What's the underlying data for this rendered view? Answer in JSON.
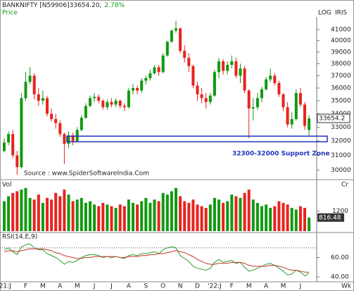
{
  "chart_data": {
    "type": "candlestick",
    "title": "BANKNIFTY [N59906]33654.20,",
    "change": "2.78%",
    "price_label": "Price",
    "scale_label": "LOG",
    "tool_label": "IRIS",
    "source": "Source : www.SpiderSoftwareIndia.Com",
    "support_zone": {
      "label": "32300-32000 Support Zone",
      "low": 32000,
      "high": 32300
    },
    "log_scale": true,
    "up_color": "#109a10",
    "down_color": "#e8231e",
    "categories": [
      "'21:J",
      null,
      null,
      null,
      null,
      "F",
      null,
      null,
      null,
      "M",
      null,
      null,
      null,
      "A",
      null,
      null,
      null,
      "M",
      null,
      null,
      null,
      "J",
      null,
      null,
      null,
      "J",
      null,
      null,
      null,
      "A",
      null,
      null,
      null,
      "S",
      null,
      null,
      null,
      "O",
      null,
      null,
      null,
      "N",
      null,
      null,
      null,
      "D",
      null,
      null,
      null,
      "'22:J",
      null,
      null,
      null,
      "F",
      null,
      null,
      null,
      "M",
      null,
      null,
      null,
      "A",
      null,
      null,
      null,
      "M",
      null,
      null,
      null,
      "J",
      null,
      null
    ],
    "x_unit": "Wk",
    "open": [
      31300,
      31900,
      32500,
      31000,
      30200,
      35200,
      36500,
      37000,
      35500,
      35000,
      35200,
      34000,
      33600,
      33300,
      32500,
      31800,
      32400,
      32000,
      32800,
      33700,
      34600,
      35200,
      35300,
      35000,
      34500,
      34900,
      34700,
      35000,
      34600,
      34500,
      35800,
      36000,
      35800,
      36600,
      36800,
      37200,
      37700,
      37300,
      38700,
      39900,
      40900,
      41100,
      39100,
      38500,
      37800,
      36200,
      35500,
      35200,
      34900,
      35400,
      37300,
      38200,
      37400,
      37900,
      38200,
      37000,
      37600,
      35800,
      34400,
      34500,
      35200,
      35900,
      36700,
      37000,
      36400,
      35500,
      34500,
      33200,
      33600,
      35600,
      34700,
      32800
    ],
    "high": [
      32200,
      32700,
      32800,
      31300,
      35600,
      37300,
      37700,
      37200,
      36000,
      35800,
      35400,
      34400,
      34000,
      33500,
      32600,
      32700,
      32600,
      33000,
      33900,
      34800,
      35400,
      35600,
      35500,
      35100,
      35100,
      35200,
      35200,
      35100,
      34800,
      36000,
      36300,
      36200,
      36800,
      37000,
      37500,
      37900,
      37900,
      38900,
      40000,
      41000,
      41800,
      41200,
      39600,
      38900,
      37900,
      36500,
      36000,
      35600,
      35600,
      37500,
      38500,
      38400,
      38200,
      38700,
      38500,
      38000,
      37800,
      35900,
      35200,
      35600,
      36100,
      36900,
      37600,
      37200,
      36600,
      35600,
      34900,
      34100,
      35900,
      36000,
      34900,
      33900
    ],
    "low": [
      31200,
      31700,
      30800,
      29700,
      30100,
      35000,
      36300,
      35100,
      34600,
      34700,
      33800,
      33400,
      32900,
      32300,
      30400,
      31500,
      31700,
      31900,
      32700,
      33600,
      34500,
      34900,
      34800,
      34300,
      34300,
      34500,
      34500,
      34400,
      34200,
      34400,
      35500,
      35500,
      35600,
      36300,
      36600,
      37100,
      37000,
      37200,
      38600,
      39800,
      40700,
      38900,
      38100,
      37300,
      36000,
      35000,
      34800,
      34400,
      34700,
      35300,
      36800,
      37100,
      37100,
      37600,
      36800,
      36400,
      35600,
      32200,
      33500,
      34300,
      34900,
      35800,
      36500,
      36200,
      35300,
      34200,
      33000,
      32900,
      33500,
      34500,
      32800,
      32300
    ],
    "close": [
      31900,
      32500,
      31000,
      30200,
      35200,
      36500,
      37000,
      35500,
      35000,
      35200,
      34000,
      33600,
      33300,
      32500,
      31800,
      32400,
      32000,
      32800,
      33700,
      34600,
      35200,
      35300,
      35000,
      34500,
      34900,
      34700,
      35000,
      34600,
      34500,
      35800,
      36000,
      35800,
      36600,
      36800,
      37200,
      37700,
      37300,
      38700,
      39900,
      40900,
      41100,
      39100,
      38500,
      37800,
      36200,
      35500,
      35200,
      34900,
      35400,
      37300,
      38200,
      37400,
      37900,
      38200,
      37000,
      37600,
      35800,
      34400,
      34500,
      35200,
      35900,
      36700,
      37000,
      36400,
      35500,
      34500,
      33200,
      33600,
      35600,
      34700,
      33100,
      33654.2
    ],
    "ylim": [
      29600,
      41900
    ],
    "yticks": [
      30000,
      31000,
      32000,
      33000,
      34000,
      35000,
      36000,
      37000,
      38000,
      39000,
      40000,
      41000
    ],
    "volume_label": "Vol",
    "volume_unit": "Cr",
    "volume": [
      1800,
      2100,
      2300,
      2400,
      2500,
      2600,
      2000,
      1900,
      2200,
      1700,
      2000,
      1900,
      2300,
      2100,
      2500,
      2200,
      1800,
      1900,
      2000,
      1700,
      1800,
      1600,
      1500,
      1700,
      1600,
      1500,
      1400,
      1600,
      1500,
      1900,
      1700,
      1600,
      1800,
      2000,
      1700,
      1900,
      1800,
      2300,
      2200,
      2400,
      2600,
      2100,
      1800,
      1700,
      1900,
      1600,
      1500,
      1400,
      1600,
      2000,
      1900,
      1700,
      1800,
      2200,
      2100,
      2000,
      2300,
      2500,
      1900,
      1700,
      1500,
      1600,
      1400,
      1500,
      1800,
      1700,
      1600,
      1400,
      1300,
      1500,
      1400,
      816.48
    ],
    "vlim": [
      0,
      2800
    ],
    "vticks": [
      1200
    ],
    "rsi_label": "RSI(14,E,9)",
    "rsi_color": "#2e9a2e",
    "signal_color": "#c0392b",
    "rsi": [
      68,
      70,
      66,
      63,
      71,
      73,
      74,
      70,
      68,
      68,
      64,
      62,
      60,
      57,
      53,
      56,
      55,
      57,
      60,
      62,
      63,
      63,
      62,
      60,
      61,
      60,
      61,
      60,
      59,
      62,
      63,
      62,
      64,
      64,
      65,
      66,
      64,
      68,
      70,
      71,
      70,
      62,
      59,
      56,
      51,
      49,
      48,
      47,
      49,
      55,
      58,
      55,
      56,
      57,
      54,
      55,
      50,
      46,
      47,
      49,
      51,
      53,
      54,
      52,
      49,
      46,
      42,
      43,
      47,
      45,
      41,
      44
    ],
    "signal": [
      66,
      67,
      67,
      66,
      67,
      68,
      69,
      69,
      69,
      69,
      68,
      67,
      65,
      64,
      62,
      61,
      60,
      59,
      59,
      60,
      60,
      61,
      61,
      61,
      61,
      61,
      61,
      60,
      60,
      61,
      61,
      61,
      62,
      62,
      63,
      63,
      64,
      64,
      65,
      66,
      67,
      66,
      65,
      63,
      61,
      58,
      56,
      54,
      53,
      53,
      54,
      54,
      54,
      55,
      55,
      55,
      54,
      52,
      51,
      51,
      51,
      51,
      52,
      52,
      51,
      50,
      48,
      47,
      47,
      46,
      45,
      45
    ],
    "rlim": [
      35,
      85
    ],
    "rticks": [
      {
        "value": 60,
        "label": "60.00"
      },
      {
        "value": 40,
        "label": "40.00"
      }
    ],
    "rsi_levels": [
      70
    ]
  }
}
